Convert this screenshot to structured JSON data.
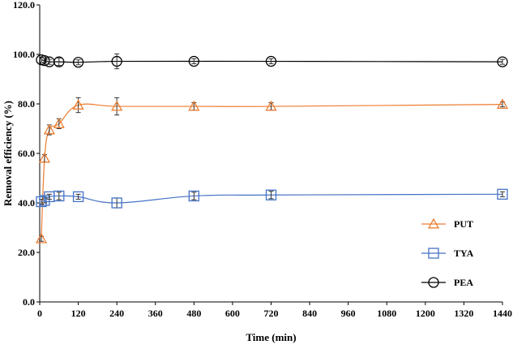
{
  "chart_data": {
    "type": "line",
    "xlabel": "Time (min)",
    "ylabel": "Removal efficiency (%)",
    "xlim": [
      0,
      1440
    ],
    "ylim": [
      0,
      120
    ],
    "xticks": [
      0,
      120,
      240,
      360,
      480,
      600,
      720,
      840,
      960,
      1080,
      1200,
      1320,
      1440
    ],
    "yticks": [
      0,
      20,
      40,
      60,
      80,
      100,
      120
    ],
    "xtick_labels": [
      "0",
      "120",
      "240",
      "360",
      "480",
      "600",
      "720",
      "840",
      "960",
      "1080",
      "1200",
      "1320",
      "1440"
    ],
    "ytick_labels": [
      "0.0",
      "20.0",
      "40.0",
      "60.0",
      "80.0",
      "100.0",
      "120.0"
    ],
    "legend_position": "right",
    "grid": false,
    "series": [
      {
        "name": "PUT",
        "color": "#ED7D31",
        "marker": "triangle",
        "x": [
          5,
          15,
          30,
          60,
          120,
          240,
          480,
          720,
          1440
        ],
        "y": [
          25.5,
          58.0,
          69.5,
          72.0,
          79.5,
          79.0,
          79.0,
          79.0,
          79.8
        ],
        "err": [
          1.0,
          1.5,
          2.0,
          2.0,
          3.0,
          3.5,
          1.5,
          1.5,
          1.0
        ]
      },
      {
        "name": "TYA",
        "color": "#4472C4",
        "marker": "square",
        "x": [
          5,
          15,
          30,
          60,
          120,
          240,
          480,
          720,
          1440
        ],
        "y": [
          40.5,
          41.0,
          42.5,
          42.8,
          42.5,
          40.0,
          42.8,
          43.2,
          43.5
        ],
        "err": [
          1.0,
          1.0,
          1.0,
          1.5,
          1.0,
          2.0,
          1.5,
          1.5,
          1.0
        ]
      },
      {
        "name": "PEA",
        "color": "#000000",
        "marker": "circle",
        "x": [
          5,
          15,
          30,
          60,
          120,
          240,
          480,
          720,
          1440
        ],
        "y": [
          97.8,
          97.5,
          97.0,
          97.0,
          96.8,
          97.2,
          97.2,
          97.2,
          97.0
        ],
        "err": [
          1.0,
          1.0,
          1.0,
          1.5,
          1.0,
          3.0,
          1.0,
          1.0,
          1.0
        ]
      }
    ]
  }
}
